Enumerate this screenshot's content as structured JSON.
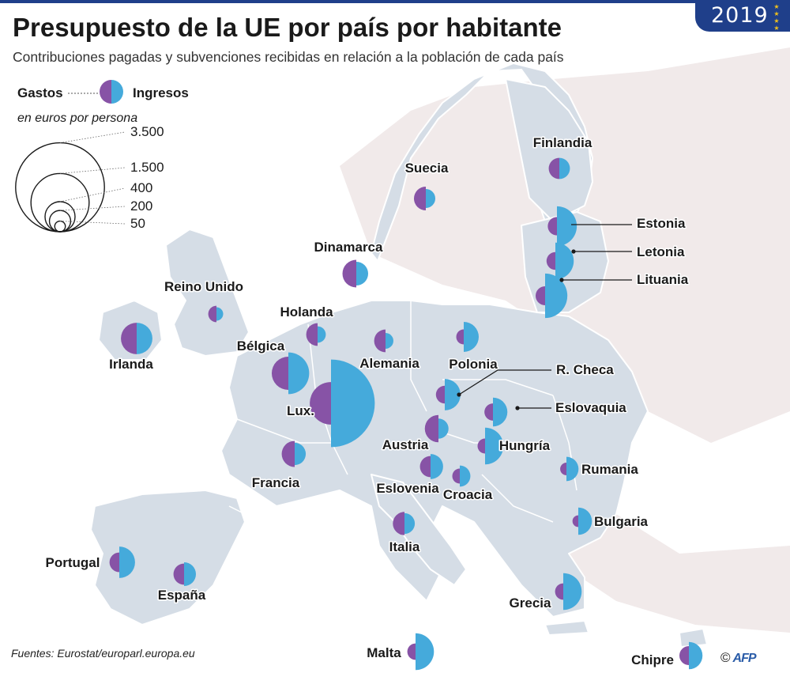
{
  "badge": {
    "year": "2019"
  },
  "header": {
    "title": "Presupuesto de la UE por país por habitante",
    "subtitle": "Contribuciones pagadas y subvenciones recibidas en relación a la población de cada país"
  },
  "legend": {
    "spending_label": "Gastos",
    "income_label": "Ingresos",
    "unit": "en euros por persona",
    "scale_values": [
      "3.500",
      "1.500",
      "400",
      "200",
      "50"
    ]
  },
  "colors": {
    "spending": "#8753a6",
    "income": "#45aadb",
    "map_land": "#d5dde6",
    "map_border": "#ffffff",
    "badge": "#1f3f8a",
    "stars": "#f2c21b"
  },
  "countries": [
    {
      "name": "Finlandia",
      "paid": 200,
      "received": 200
    },
    {
      "name": "Suecia",
      "paid": 250,
      "received": 160
    },
    {
      "name": "Estonia",
      "paid": 150,
      "received": 700
    },
    {
      "name": "Letonia",
      "paid": 140,
      "received": 600
    },
    {
      "name": "Lituania",
      "paid": 160,
      "received": 880
    },
    {
      "name": "Dinamarca",
      "paid": 340,
      "received": 250
    },
    {
      "name": "Reino Unido",
      "paid": 120,
      "received": 80
    },
    {
      "name": "Holanda",
      "paid": 230,
      "received": 120
    },
    {
      "name": "Irlanda",
      "paid": 440,
      "received": 440
    },
    {
      "name": "Bélgica",
      "paid": 490,
      "received": 770
    },
    {
      "name": "Alemania",
      "paid": 230,
      "received": 110
    },
    {
      "name": "Polonia",
      "paid": 100,
      "received": 400
    },
    {
      "name": "Lux.",
      "paid": 800,
      "received": 3400
    },
    {
      "name": "R. Checa",
      "paid": 140,
      "received": 440
    },
    {
      "name": "Eslovaquia",
      "paid": 130,
      "received": 370
    },
    {
      "name": "Austria",
      "paid": 330,
      "received": 180
    },
    {
      "name": "Hungría",
      "paid": 100,
      "received": 600
    },
    {
      "name": "Francia",
      "paid": 300,
      "received": 220
    },
    {
      "name": "Eslovenia",
      "paid": 200,
      "received": 280
    },
    {
      "name": "Croacia",
      "paid": 100,
      "received": 200
    },
    {
      "name": "Rumania",
      "paid": 70,
      "received": 260
    },
    {
      "name": "Bulgaria",
      "paid": 60,
      "received": 330
    },
    {
      "name": "Italia",
      "paid": 240,
      "received": 190
    },
    {
      "name": "Portugal",
      "paid": 170,
      "received": 440
    },
    {
      "name": "España",
      "paid": 200,
      "received": 250
    },
    {
      "name": "Grecia",
      "paid": 120,
      "received": 600
    },
    {
      "name": "Malta",
      "paid": 120,
      "received": 600
    },
    {
      "name": "Chipre",
      "paid": 160,
      "received": 330
    }
  ],
  "footer": {
    "source": "Fuentes: Eurostat/europarl.europa.eu",
    "copyright": "©",
    "agency": "AFP"
  }
}
